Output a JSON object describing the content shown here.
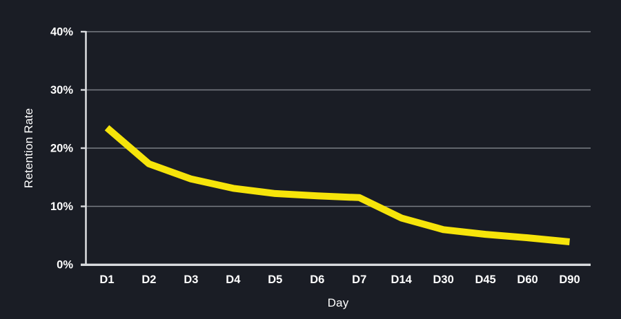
{
  "chart_data": {
    "type": "line",
    "categories": [
      "D1",
      "D2",
      "D3",
      "D4",
      "D5",
      "D6",
      "D7",
      "D14",
      "D30",
      "D45",
      "D60",
      "D90"
    ],
    "values": [
      23.5,
      17.3,
      14.7,
      13.1,
      12.2,
      11.8,
      11.5,
      8.0,
      6.0,
      5.2,
      4.6,
      3.9
    ],
    "title": "",
    "xlabel": "Day",
    "ylabel": "Retention Rate",
    "ylim": [
      0,
      40
    ],
    "yticks": [
      0,
      10,
      20,
      30,
      40
    ],
    "ytick_labels": [
      "0%",
      "10%",
      "20%",
      "30%",
      "40%"
    ],
    "grid": true,
    "legend_position": "none",
    "colors": {
      "line": "#f6e40a",
      "background": "#1a1d25",
      "gridline": "#7a7e85",
      "axis": "#d9dbde",
      "text": "#ffffff"
    }
  }
}
